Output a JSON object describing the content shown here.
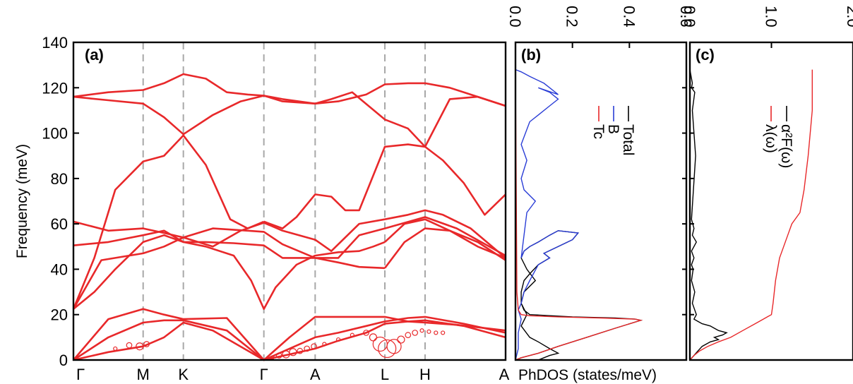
{
  "chart_data": [
    {
      "panel": "(a)",
      "type": "line",
      "ylabel": "Frequency (meV)",
      "ylim": [
        0,
        140
      ],
      "yticks": [
        0,
        20,
        40,
        60,
        80,
        100,
        120,
        140
      ],
      "path_labels": [
        "Γ",
        "M",
        "K",
        "Γ",
        "A",
        "L",
        "H",
        "A"
      ],
      "path_positions": [
        0,
        1,
        1.577,
        2.732,
        3.468,
        4.468,
        5.045,
        6.2
      ],
      "series": [
        {
          "x": [
            0,
            0.5,
            1,
            1.3,
            1.577,
            2.0,
            2.732,
            3.1,
            3.468,
            3.8,
            4.2,
            4.468,
            4.8,
            5.045,
            5.6,
            6.2
          ],
          "y": [
            0,
            3.5,
            6,
            10,
            16.5,
            13,
            0,
            2.5,
            5,
            8.5,
            12,
            16,
            17,
            17.5,
            15,
            10
          ]
        },
        {
          "x": [
            0,
            0.5,
            1,
            1.3,
            1.577,
            2.2,
            2.732,
            3.1,
            3.468,
            3.9,
            4.468,
            4.8,
            5.045,
            5.5,
            6.2
          ],
          "y": [
            0,
            10,
            16.5,
            17.5,
            17.5,
            13,
            0,
            10,
            19,
            19,
            19,
            17,
            16.5,
            15.5,
            13
          ]
        },
        {
          "x": [
            0,
            0.5,
            1,
            1.3,
            1.577,
            2.2,
            2.732,
            3.1,
            3.468,
            3.8,
            4.2,
            4.468,
            4.8,
            5.045,
            5.6,
            6.2
          ],
          "y": [
            0,
            18,
            22.5,
            20,
            18,
            18.5,
            0,
            5,
            10,
            12,
            15,
            17,
            18.5,
            19,
            16,
            12
          ]
        },
        {
          "x": [
            0,
            0.3,
            0.6,
            1,
            1.3,
            1.577,
            1.9,
            2.3,
            2.55,
            2.732,
            2.9,
            3.2,
            3.468,
            3.8,
            4.1,
            4.3,
            4.468
          ],
          "y": [
            22.5,
            30,
            40,
            52,
            55,
            52,
            50,
            46,
            35,
            22.5,
            32,
            42,
            46,
            47.5,
            48,
            50,
            52
          ]
        },
        {
          "x": [
            4.468,
            4.75,
            5.045,
            5.4,
            5.8,
            6.2
          ],
          "y": [
            52,
            60,
            62,
            57,
            50,
            45
          ]
        },
        {
          "x": [
            0,
            0.4,
            1,
            1.3,
            1.577,
            2.0,
            2.5,
            2.732,
            3.0,
            3.468,
            3.8,
            4.1,
            4.468
          ],
          "y": [
            22.5,
            44,
            47,
            50,
            54,
            58,
            57,
            56.5,
            51,
            45,
            45,
            55,
            58
          ]
        },
        {
          "x": [
            4.468,
            4.7,
            5.045,
            5.5,
            6.2
          ],
          "y": [
            58,
            60,
            63,
            58,
            46
          ]
        },
        {
          "x": [
            0,
            0.5,
            1,
            1.3,
            1.577,
            1.9,
            2.3,
            2.732,
            3.0,
            3.468,
            3.8,
            4.1,
            4.468
          ],
          "y": [
            50.5,
            52,
            55,
            57,
            52,
            52,
            51.5,
            50.5,
            45,
            45,
            43,
            41,
            40.5
          ]
        },
        {
          "x": [
            4.468,
            4.75,
            5.045,
            5.4,
            5.8,
            6.2
          ],
          "y": [
            40.5,
            52,
            58,
            57,
            52,
            44
          ]
        },
        {
          "x": [
            0,
            0.5,
            1,
            1.3,
            1.577,
            2.0,
            2.4,
            2.732,
            3.0,
            3.468,
            3.7,
            4.1,
            4.468
          ],
          "y": [
            61,
            57,
            58,
            56,
            54,
            50,
            57,
            60.5,
            57,
            53,
            48,
            60,
            62
          ]
        },
        {
          "x": [
            4.468,
            4.8,
            5.045,
            5.3,
            5.7,
            6.2
          ],
          "y": [
            62,
            64,
            66,
            64,
            58,
            45
          ]
        },
        {
          "x": [
            0,
            0.3,
            0.6,
            1,
            1.3,
            1.577,
            1.9,
            2.25,
            2.5,
            2.732
          ],
          "y": [
            22.5,
            45,
            75,
            87.5,
            90,
            99,
            86,
            62,
            58,
            61
          ]
        },
        {
          "x": [
            2.732,
            3.0,
            3.2,
            3.468,
            3.7,
            3.9,
            4.1,
            4.468,
            4.8,
            5.045,
            5.3,
            5.6,
            5.9,
            6.2
          ],
          "y": [
            61,
            58,
            63,
            73,
            72,
            66,
            66,
            94,
            95,
            94,
            88,
            78,
            64,
            73
          ]
        },
        {
          "x": [
            0,
            0.5,
            1,
            1.3,
            1.577,
            1.9,
            2.2,
            2.5,
            2.732,
            3.0,
            3.468,
            3.8,
            4.2,
            4.468,
            4.8,
            5.045,
            5.4,
            5.8,
            6.2
          ],
          "y": [
            116,
            118,
            119,
            122,
            126,
            124,
            118,
            117,
            116.5,
            114,
            113,
            114,
            117,
            121.5,
            122,
            122,
            120,
            116,
            112
          ]
        },
        {
          "x": [
            0,
            0.5,
            1,
            1.3,
            1.577,
            2.0,
            2.4,
            2.732,
            3.0,
            3.468,
            3.7,
            4.0,
            4.468,
            4.8,
            5.045,
            5.4,
            5.8,
            6.2
          ],
          "y": [
            116,
            114.5,
            113,
            107,
            99.5,
            108,
            114,
            116.5,
            115,
            113,
            115,
            118,
            106,
            102,
            94,
            115,
            116,
            112
          ]
        }
      ],
      "bubbles": {
        "x": [
          0.6,
          0.8,
          0.95,
          1.05,
          2.85,
          2.95,
          3.05,
          3.15,
          3.25,
          3.35,
          3.45,
          3.6,
          3.8,
          4.0,
          4.2,
          4.3,
          4.4,
          4.5,
          4.6,
          4.7,
          4.8,
          4.9,
          5.0,
          5.1,
          5.2,
          5.3
        ],
        "y": [
          5,
          6.5,
          6,
          7,
          1,
          2,
          2.5,
          3.5,
          4,
          5,
          6,
          7,
          9,
          11,
          12,
          10,
          7,
          5,
          6,
          9,
          11,
          12,
          13,
          12.5,
          12,
          12
        ],
        "size": [
          1,
          1.5,
          2,
          1.5,
          1,
          1.5,
          2,
          2,
          1.5,
          1.5,
          1.5,
          1,
          1,
          1,
          1.5,
          2,
          4,
          5,
          4,
          2,
          1.5,
          1.5,
          1,
          1,
          1,
          1
        ]
      }
    },
    {
      "panel": "(b)",
      "type": "line",
      "xlabel": "PhDOS (states/meV)",
      "xlim": [
        0.0,
        0.6
      ],
      "xticks": [
        "0.0",
        "0.2",
        "0.4",
        "0.6"
      ],
      "ylim": [
        0,
        140
      ],
      "series": [
        {
          "name": "Total",
          "x": [
            0,
            0.02,
            0.08,
            0.15,
            0.25,
            0.35,
            0.44,
            0.42,
            0.35,
            0.2,
            0.05,
            0.03,
            0.02,
            0.02,
            0.03,
            0.05,
            0.08,
            0.12,
            0.1,
            0.15,
            0.2,
            0.22,
            0.15,
            0.12,
            0.08,
            0.05,
            0.03,
            0.02,
            0.04,
            0.07,
            0.03,
            0.02,
            0.04,
            0.02,
            0.05,
            0.08,
            0.12,
            0.15,
            0.12,
            0.08,
            0.15,
            0.1,
            0.05,
            0.02,
            0
          ],
          "y": [
            0,
            1,
            3,
            6,
            10,
            14,
            17.5,
            18,
            18.5,
            19,
            20,
            22,
            25,
            30,
            35,
            38,
            42,
            45,
            47,
            50,
            53,
            56,
            57,
            55,
            52,
            50,
            48,
            45,
            40,
            35,
            30,
            25,
            20,
            15,
            10,
            8,
            5,
            3,
            2,
            0,
            0,
            0,
            0,
            0,
            0
          ]
        },
        {
          "name": "B",
          "x": [
            0,
            0.01,
            0.01,
            0.02,
            0.01,
            0.02,
            0.03,
            0.05,
            0.08,
            0.12,
            0.1,
            0.15,
            0.2,
            0.22,
            0.15,
            0.12,
            0.08,
            0.05,
            0.03,
            0.02,
            0.04,
            0.07,
            0.03,
            0.02,
            0.04,
            0.02,
            0.05,
            0.08,
            0.12,
            0.15,
            0.12,
            0.08,
            0.15,
            0.1,
            0.05,
            0.02,
            0
          ],
          "y": [
            0,
            5,
            12,
            18,
            22,
            25,
            30,
            35,
            42,
            45,
            47,
            50,
            53,
            56,
            57,
            55,
            52,
            50,
            48,
            45,
            65,
            70,
            75,
            80,
            88,
            95,
            105,
            108,
            112,
            115,
            118,
            120,
            117,
            122,
            125,
            127,
            128
          ]
        },
        {
          "name": "Tc",
          "x": [
            0,
            0.02,
            0.08,
            0.15,
            0.25,
            0.35,
            0.44,
            0.42,
            0.3,
            0.15,
            0.05,
            0.02,
            0.01,
            0.005,
            0
          ],
          "y": [
            0,
            1,
            3,
            6,
            10,
            14,
            17.5,
            18,
            18.5,
            19,
            19.5,
            20,
            22,
            30,
            128
          ]
        }
      ],
      "legend": [
        "Total",
        "B",
        "Tc"
      ]
    },
    {
      "panel": "(c)",
      "type": "line",
      "xlim": [
        0.0,
        2.0
      ],
      "xticks": [
        "0.0",
        "1.0",
        "2.0"
      ],
      "ylim": [
        0,
        140
      ],
      "series": [
        {
          "name": "α²F(ω)",
          "x": [
            0,
            0.05,
            0.1,
            0.15,
            0.25,
            0.35,
            0.3,
            0.4,
            0.45,
            0.35,
            0.3,
            0.25,
            0.15,
            0.1,
            0.05,
            0.08,
            0.03,
            0.06,
            0.02,
            0.04,
            0.02,
            0.05,
            0.02,
            0.08,
            0.03,
            0.05,
            0.02,
            0.07,
            0.03,
            0.06,
            0.02,
            0.03,
            0
          ],
          "y": [
            0,
            2,
            4,
            6,
            8,
            9,
            10,
            11,
            12,
            13,
            14,
            15,
            16,
            17,
            18,
            20,
            25,
            30,
            35,
            40,
            42,
            45,
            48,
            52,
            55,
            58,
            62,
            90,
            110,
            118,
            120,
            122,
            128
          ]
        },
        {
          "name": "λ(ω)",
          "x": [
            0,
            0.05,
            0.12,
            0.22,
            0.35,
            0.5,
            0.65,
            0.8,
            0.9,
            0.95,
            1.0,
            1.02,
            1.05,
            1.1,
            1.15,
            1.2,
            1.25,
            1.35,
            1.4,
            1.45,
            1.5,
            1.5
          ],
          "y": [
            0,
            2,
            4,
            6,
            8,
            10,
            13,
            16,
            18,
            19,
            20,
            25,
            35,
            45,
            50,
            55,
            60,
            65,
            75,
            90,
            110,
            128
          ]
        }
      ],
      "legend": [
        "α²F(ω)",
        "λ(ω)"
      ]
    }
  ],
  "panel_a": {
    "label": "(a)",
    "ylabel": "Frequency (meV)"
  },
  "panel_b": {
    "label": "(b)",
    "xlabel": "PhDOS (states/meV)",
    "legend": [
      "Total",
      "B",
      "Tc"
    ]
  },
  "panel_c": {
    "label": "(c)",
    "legend": [
      "α²F(ω)",
      "λ(ω)"
    ]
  },
  "colors": {
    "band": "#e8282a",
    "total": "#000000",
    "b": "#2a3dd6",
    "tc": "#e8282a",
    "grid": "#a8a8a8"
  }
}
